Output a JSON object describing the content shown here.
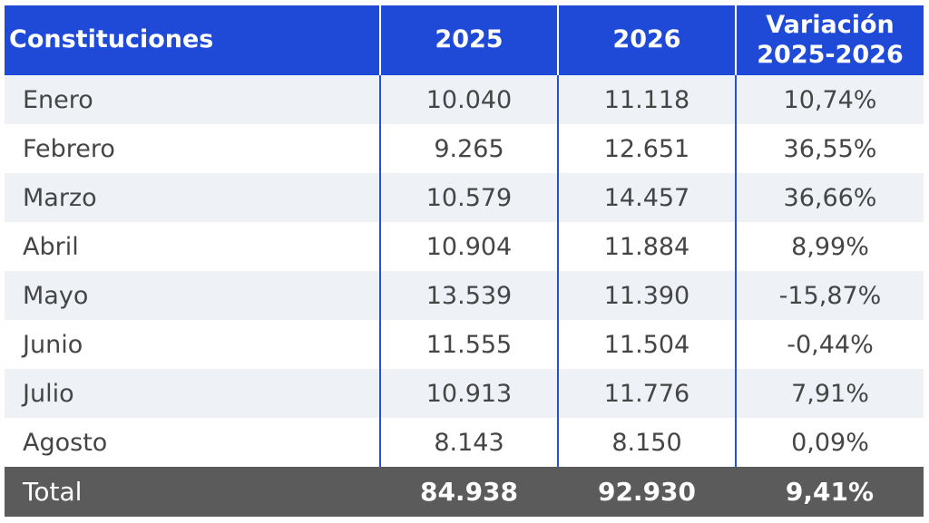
{
  "table": {
    "headers": [
      "Constituciones",
      "2025",
      "2026",
      "Variación 2025-2026"
    ],
    "header_variation_line1": "Variación",
    "header_variation_line2": "2025-2026",
    "rows": [
      [
        "Enero",
        "10.040",
        "11.118",
        "10,74%"
      ],
      [
        "Febrero",
        "9.265",
        "12.651",
        "36,55%"
      ],
      [
        "Marzo",
        "10.579",
        "14.457",
        "36,66%"
      ],
      [
        "Abril",
        "10.904",
        "11.884",
        "8,99%"
      ],
      [
        "Mayo",
        "13.539",
        "11.390",
        "-15,87%"
      ],
      [
        "Junio",
        "11.555",
        "11.504",
        "-0,44%"
      ],
      [
        "Julio",
        "10.913",
        "11.776",
        "7,91%"
      ],
      [
        "Agosto",
        "8.143",
        "8.150",
        "0,09%"
      ]
    ],
    "total": [
      "Total",
      "84.938",
      "92.930",
      "9,41%"
    ]
  },
  "colors": {
    "header_bg": "#1f4ad8",
    "row_alt_bg": "#eef2f7",
    "row_bg": "#ffffff",
    "divider": "#2450d8",
    "total_bg": "#5b5b5b"
  }
}
